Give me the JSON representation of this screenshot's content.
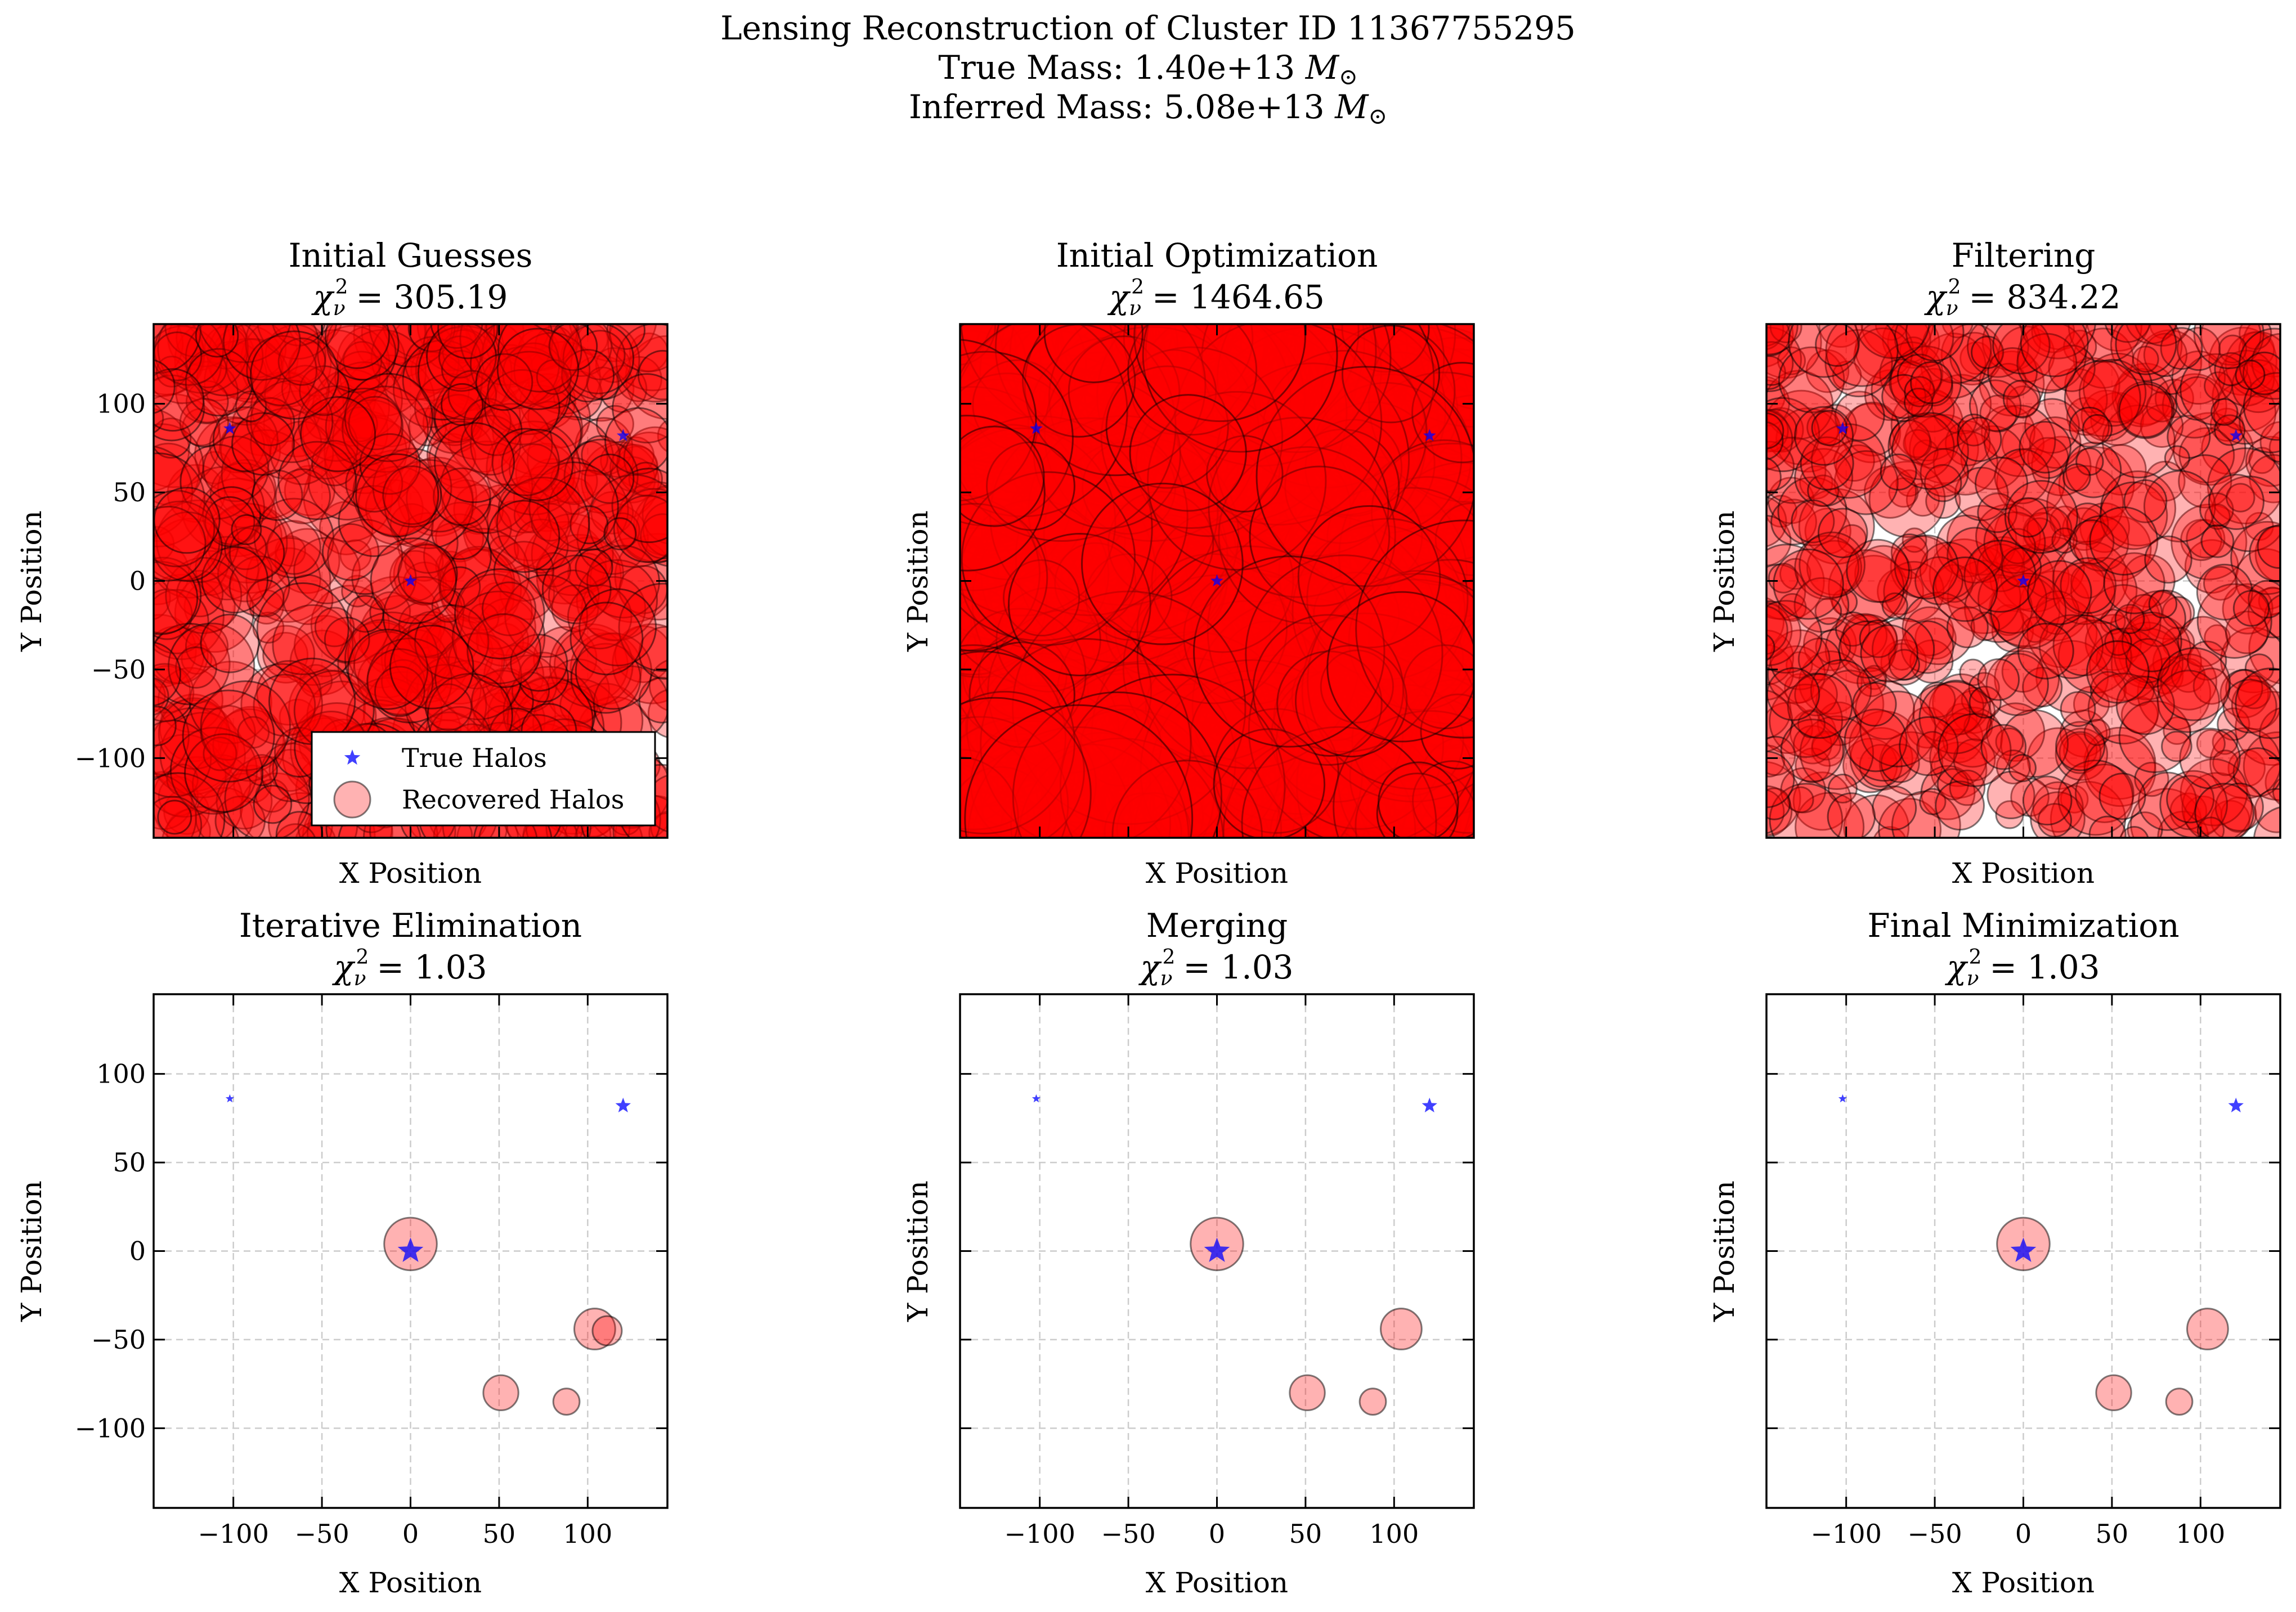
{
  "figure": {
    "title_line1": "Lensing Reconstruction of Cluster ID 11367755295",
    "title_line2_prefix": "True Mass: 1.40e+13 ",
    "title_line3_prefix": "Inferred Mass: 5.08e+13 ",
    "mass_unit_symbol": "M",
    "mass_unit_subscript": "⊙"
  },
  "colors": {
    "recovered_fill": "#ff0000",
    "recovered_edge": "#000000",
    "true_halo": "#0000ff",
    "grid": "#cccccc"
  },
  "chart_data": [
    {
      "type": "scatter",
      "title": "Initial Guesses",
      "chi2_symbol": "χ",
      "chi2_sub": "ν",
      "chi2_sup": "2",
      "chi2_value": "= 305.19",
      "xlabel": "X Position",
      "ylabel": "Y Position",
      "xlim": [
        -145,
        145
      ],
      "ylim": [
        -145,
        145
      ],
      "show_xticklabels": false,
      "show_yticklabels": true,
      "grid": true,
      "legend": {
        "placement": "lower-right",
        "entries": [
          "True Halos",
          "Recovered Halos"
        ]
      },
      "true_halos": [
        {
          "x": 0,
          "y": 0
        },
        {
          "x": -102,
          "y": 86
        },
        {
          "x": 120,
          "y": 82
        }
      ],
      "recovered_halos": {
        "kind": "random_cloud",
        "count": 620,
        "size_range": [
          5,
          16
        ],
        "alpha": 0.3
      }
    },
    {
      "type": "scatter",
      "title": "Initial Optimization",
      "chi2_symbol": "χ",
      "chi2_sub": "ν",
      "chi2_sup": "2",
      "chi2_value": "= 1464.65",
      "xlabel": "X Position",
      "ylabel": "Y Position",
      "xlim": [
        -145,
        145
      ],
      "ylim": [
        -145,
        145
      ],
      "show_xticklabels": false,
      "show_yticklabels": false,
      "grid": true,
      "true_halos": [
        {
          "x": 0,
          "y": 0
        },
        {
          "x": -102,
          "y": 86
        },
        {
          "x": 120,
          "y": 82
        }
      ],
      "recovered_halos": {
        "kind": "random_cloud",
        "count": 620,
        "size_range": [
          12,
          40
        ],
        "alpha": 0.3
      }
    },
    {
      "type": "scatter",
      "title": "Filtering",
      "chi2_symbol": "χ",
      "chi2_sub": "ν",
      "chi2_sup": "2",
      "chi2_value": "= 834.22",
      "xlabel": "X Position",
      "ylabel": "Y Position",
      "xlim": [
        -145,
        145
      ],
      "ylim": [
        -145,
        145
      ],
      "show_xticklabels": false,
      "show_yticklabels": false,
      "grid": true,
      "true_halos": [
        {
          "x": 0,
          "y": 0
        },
        {
          "x": -102,
          "y": 86
        },
        {
          "x": 120,
          "y": 82
        }
      ],
      "recovered_halos": {
        "kind": "random_cloud",
        "count": 560,
        "size_range": [
          4,
          13
        ],
        "alpha": 0.3
      }
    },
    {
      "type": "scatter",
      "title": "Iterative Elimination",
      "chi2_symbol": "χ",
      "chi2_sub": "ν",
      "chi2_sup": "2",
      "chi2_value": "= 1.03",
      "xlabel": "X Position",
      "ylabel": "Y Position",
      "xlim": [
        -145,
        145
      ],
      "ylim": [
        -145,
        145
      ],
      "xticks": [
        -100,
        -50,
        0,
        50,
        100
      ],
      "yticks": [
        -100,
        -50,
        0,
        50,
        100
      ],
      "show_xticklabels": true,
      "show_yticklabels": true,
      "grid": true,
      "true_halos": [
        {
          "x": 0,
          "y": 0,
          "size": 3
        },
        {
          "x": -102,
          "y": 86,
          "size": 1
        },
        {
          "x": 120,
          "y": 82,
          "size": 1.8
        }
      ],
      "recovered_halos": [
        {
          "x": 0,
          "y": 4,
          "size": 9
        },
        {
          "x": 104,
          "y": -44,
          "size": 7
        },
        {
          "x": 111,
          "y": -45,
          "size": 5
        },
        {
          "x": 51,
          "y": -80,
          "size": 6
        },
        {
          "x": 88,
          "y": -85,
          "size": 4.5
        }
      ]
    },
    {
      "type": "scatter",
      "title": "Merging",
      "chi2_symbol": "χ",
      "chi2_sub": "ν",
      "chi2_sup": "2",
      "chi2_value": "= 1.03",
      "xlabel": "X Position",
      "ylabel": "Y Position",
      "xlim": [
        -145,
        145
      ],
      "ylim": [
        -145,
        145
      ],
      "xticks": [
        -100,
        -50,
        0,
        50,
        100
      ],
      "yticks": [
        -100,
        -50,
        0,
        50,
        100
      ],
      "show_xticklabels": true,
      "show_yticklabels": false,
      "grid": true,
      "true_halos": [
        {
          "x": 0,
          "y": 0,
          "size": 3
        },
        {
          "x": -102,
          "y": 86,
          "size": 1
        },
        {
          "x": 120,
          "y": 82,
          "size": 1.8
        }
      ],
      "recovered_halos": [
        {
          "x": 0,
          "y": 4,
          "size": 9
        },
        {
          "x": 104,
          "y": -44,
          "size": 7
        },
        {
          "x": 51,
          "y": -80,
          "size": 6
        },
        {
          "x": 88,
          "y": -85,
          "size": 4.5
        }
      ]
    },
    {
      "type": "scatter",
      "title": "Final Minimization",
      "chi2_symbol": "χ",
      "chi2_sub": "ν",
      "chi2_sup": "2",
      "chi2_value": "= 1.03",
      "xlabel": "X Position",
      "ylabel": "Y Position",
      "xlim": [
        -145,
        145
      ],
      "ylim": [
        -145,
        145
      ],
      "xticks": [
        -100,
        -50,
        0,
        50,
        100
      ],
      "yticks": [
        -100,
        -50,
        0,
        50,
        100
      ],
      "show_xticklabels": true,
      "show_yticklabels": false,
      "grid": true,
      "true_halos": [
        {
          "x": 0,
          "y": 0,
          "size": 3
        },
        {
          "x": -102,
          "y": 86,
          "size": 1
        },
        {
          "x": 120,
          "y": 82,
          "size": 1.8
        }
      ],
      "recovered_halos": [
        {
          "x": 0,
          "y": 4,
          "size": 9
        },
        {
          "x": 104,
          "y": -44,
          "size": 7
        },
        {
          "x": 51,
          "y": -80,
          "size": 6
        },
        {
          "x": 88,
          "y": -85,
          "size": 4.5
        }
      ]
    }
  ]
}
